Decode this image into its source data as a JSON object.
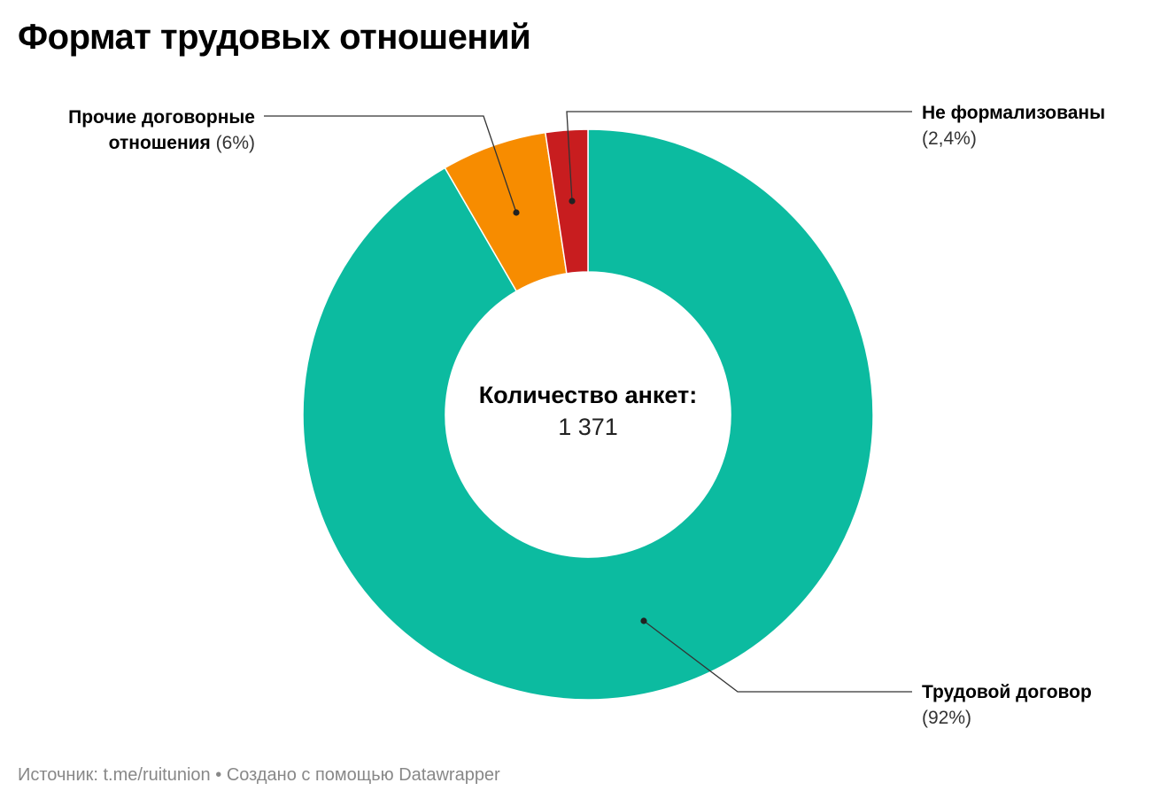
{
  "title": "Формат трудовых отношений",
  "center": {
    "title": "Количество анкет:",
    "value": "1 371"
  },
  "footer": {
    "source_label": "Источник:",
    "source_value": "t.me/ruitunion",
    "separator": "•",
    "created_text": "Создано с помощью Datawrapper"
  },
  "chart_data": {
    "type": "pie",
    "hole": "donut",
    "center_label": "Количество анкет:",
    "center_value": "1 371",
    "start_angle": "top (12 o'clock)",
    "direction": "clockwise",
    "slices": [
      {
        "name": "Трудовой договор",
        "value": 92,
        "value_label": "(92%)",
        "color": "#0cbba0"
      },
      {
        "name": "Прочие договорные отношения",
        "value": 6,
        "value_label": "(6%)",
        "color": "#f78c00"
      },
      {
        "name": "Не формализованы",
        "value": 2.4,
        "value_label": "(2,4%)",
        "color": "#c81d1f"
      }
    ]
  }
}
